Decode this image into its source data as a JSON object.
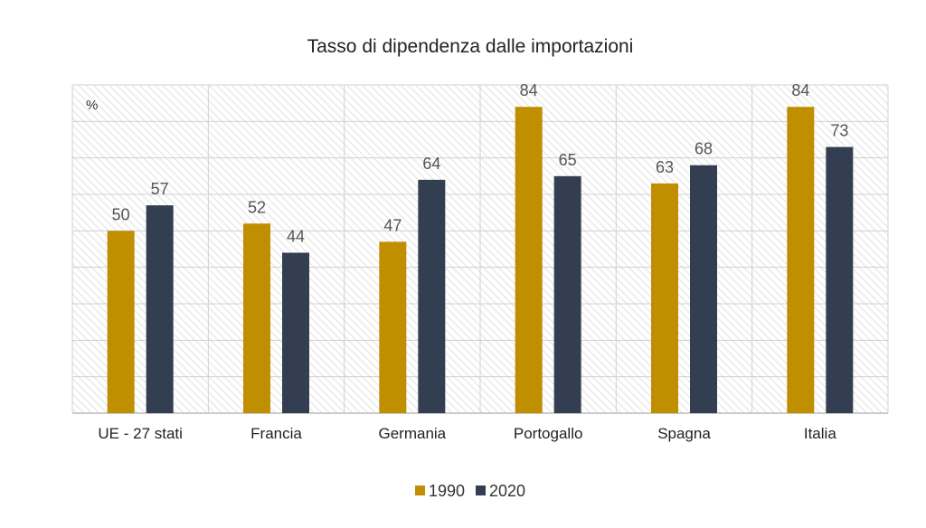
{
  "chart_data": {
    "type": "bar",
    "title": "Tasso di dipendenza dalle importazioni",
    "unit_label": "%",
    "categories": [
      "UE - 27 stati",
      "Francia",
      "Germania",
      "Portogallo",
      "Spagna",
      "Italia"
    ],
    "series": [
      {
        "name": "1990",
        "color": "#bf8f00",
        "values": [
          50,
          52,
          47,
          84,
          63,
          84
        ]
      },
      {
        "name": "2020",
        "color": "#333f50",
        "values": [
          57,
          44,
          64,
          65,
          68,
          73
        ]
      }
    ],
    "ylim": [
      0,
      90
    ],
    "grid": true,
    "legend_position": "bottom-center"
  }
}
